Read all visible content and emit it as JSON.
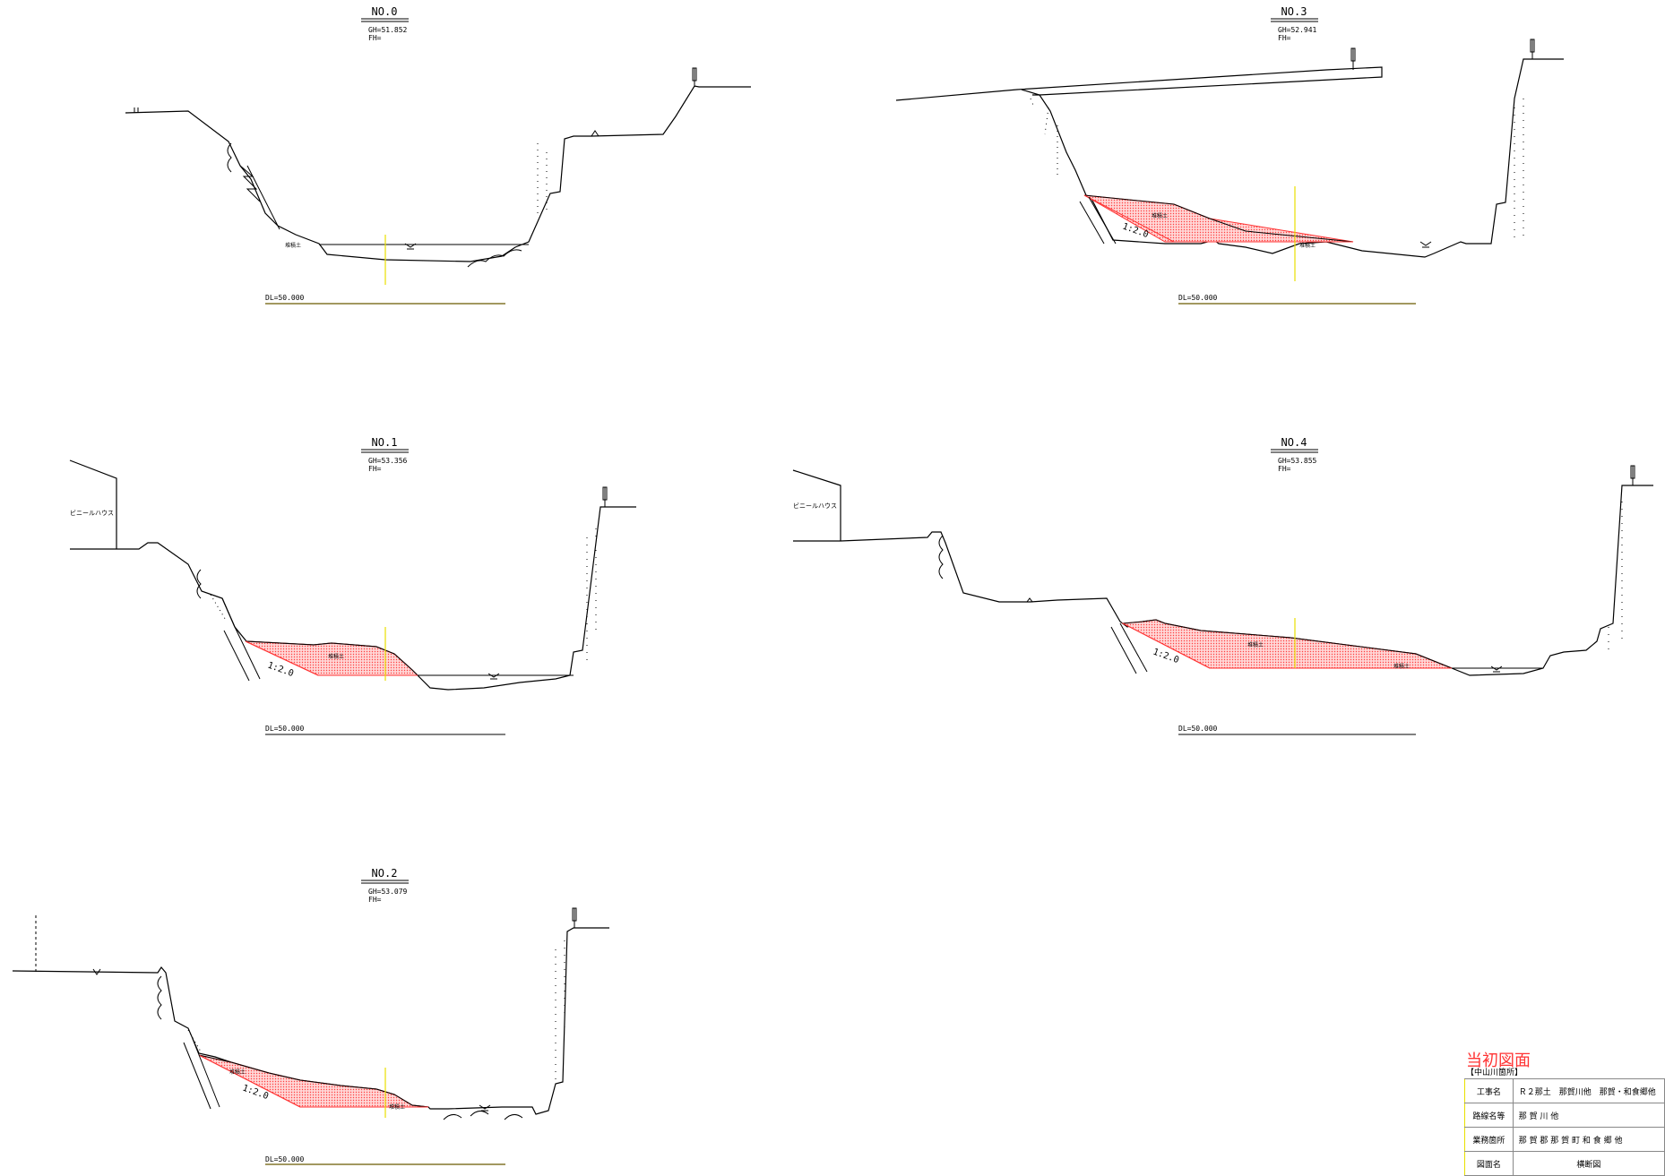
{
  "sections": [
    {
      "id": "no0",
      "title": "NO.0",
      "gh": "GH=51.852",
      "fh": "FH=",
      "dl": "DL=50.000",
      "fill_label": "堆積土"
    },
    {
      "id": "no1",
      "title": "NO.1",
      "gh": "GH=53.356",
      "fh": "FH=",
      "dl": "DL=50.000",
      "fill_label": "堆積土",
      "slope": "1:2.0",
      "building": "ビニールハウス"
    },
    {
      "id": "no2",
      "title": "NO.2",
      "gh": "GH=53.079",
      "fh": "FH=",
      "dl": "DL=50.000",
      "fill_label": "堆積土",
      "fill_label2": "堆積土",
      "slope": "1:2.0"
    },
    {
      "id": "no3",
      "title": "NO.3",
      "gh": "GH=52.941",
      "fh": "FH=",
      "dl": "DL=50.000",
      "fill_label": "堆積土",
      "fill_label2": "堆積土",
      "slope": "1:2.0"
    },
    {
      "id": "no4",
      "title": "NO.4",
      "gh": "GH=53.855",
      "fh": "FH=",
      "dl": "DL=50.000",
      "fill_label": "堆積土",
      "fill_label2": "堆積土",
      "slope": "1:2.0",
      "building": "ビニールハウス"
    }
  ],
  "title_block": {
    "stamp": "当初図面",
    "subtitle": "【中山川箇所】",
    "rows": [
      {
        "key": "工事名",
        "value": "Ｒ２那土　那賀川他　那賀・和食郷他"
      },
      {
        "key": "路線名等",
        "value": "那 賀 川 他"
      },
      {
        "key": "業務箇所",
        "value": "那 賀 郡 那 賀 町 和 食 郷 他"
      },
      {
        "key": "図面名",
        "value": "横断図"
      }
    ]
  },
  "colors": {
    "fill": "#ff5a5a",
    "outline": "#000000",
    "centerline": "#e8e000",
    "stamp": "#ff3333"
  }
}
